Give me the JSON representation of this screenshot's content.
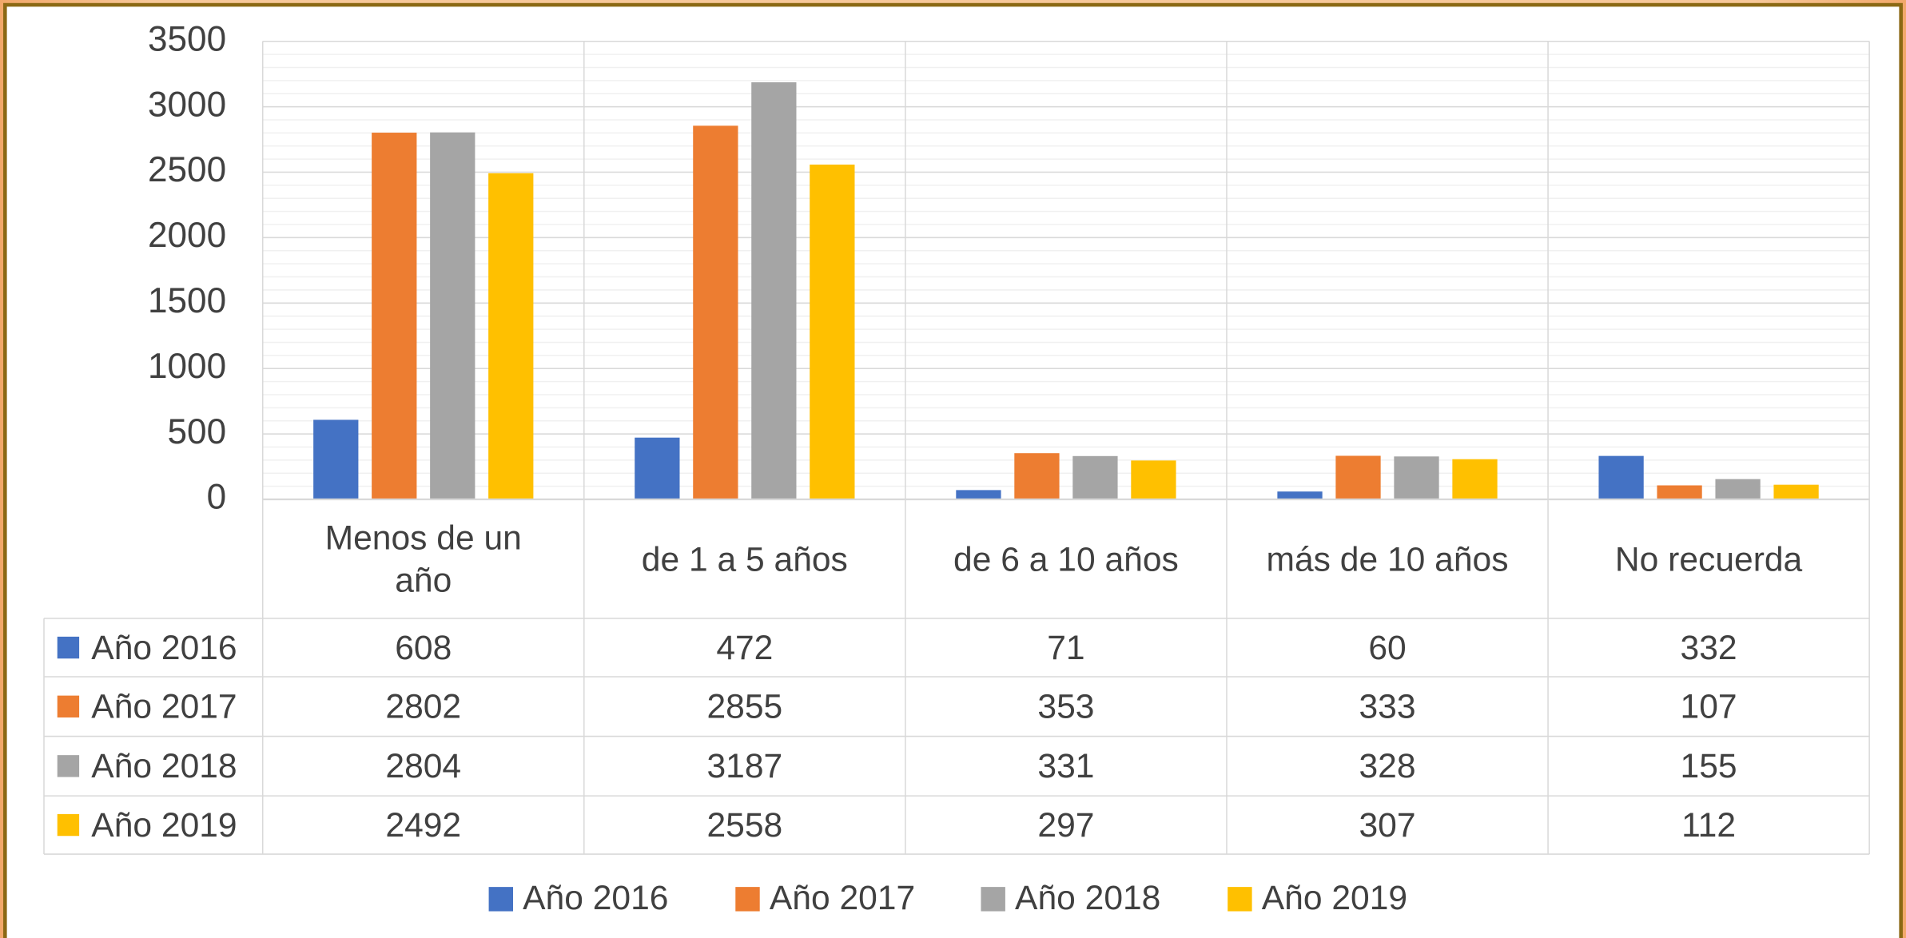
{
  "chart_data": {
    "type": "bar",
    "categories": [
      "Menos de un año",
      "de 1 a 5 años",
      "de 6 a 10 años",
      "más de 10 años",
      "No recuerda"
    ],
    "series": [
      {
        "name": "Año 2016",
        "color": "#4472c4",
        "values": [
          608,
          472,
          71,
          60,
          332
        ]
      },
      {
        "name": "Año 2017",
        "color": "#ed7d31",
        "values": [
          2802,
          2855,
          353,
          333,
          107
        ]
      },
      {
        "name": "Año 2018",
        "color": "#a5a5a5",
        "values": [
          2804,
          3187,
          331,
          328,
          155
        ]
      },
      {
        "name": "Año 2019",
        "color": "#ffc000",
        "values": [
          2492,
          2558,
          297,
          307,
          112
        ]
      }
    ],
    "ylim": [
      0,
      3500
    ],
    "yticks": [
      0,
      500,
      1000,
      1500,
      2000,
      2500,
      3000,
      3500
    ],
    "grid": true,
    "legend": "bottom",
    "data_table": true
  }
}
